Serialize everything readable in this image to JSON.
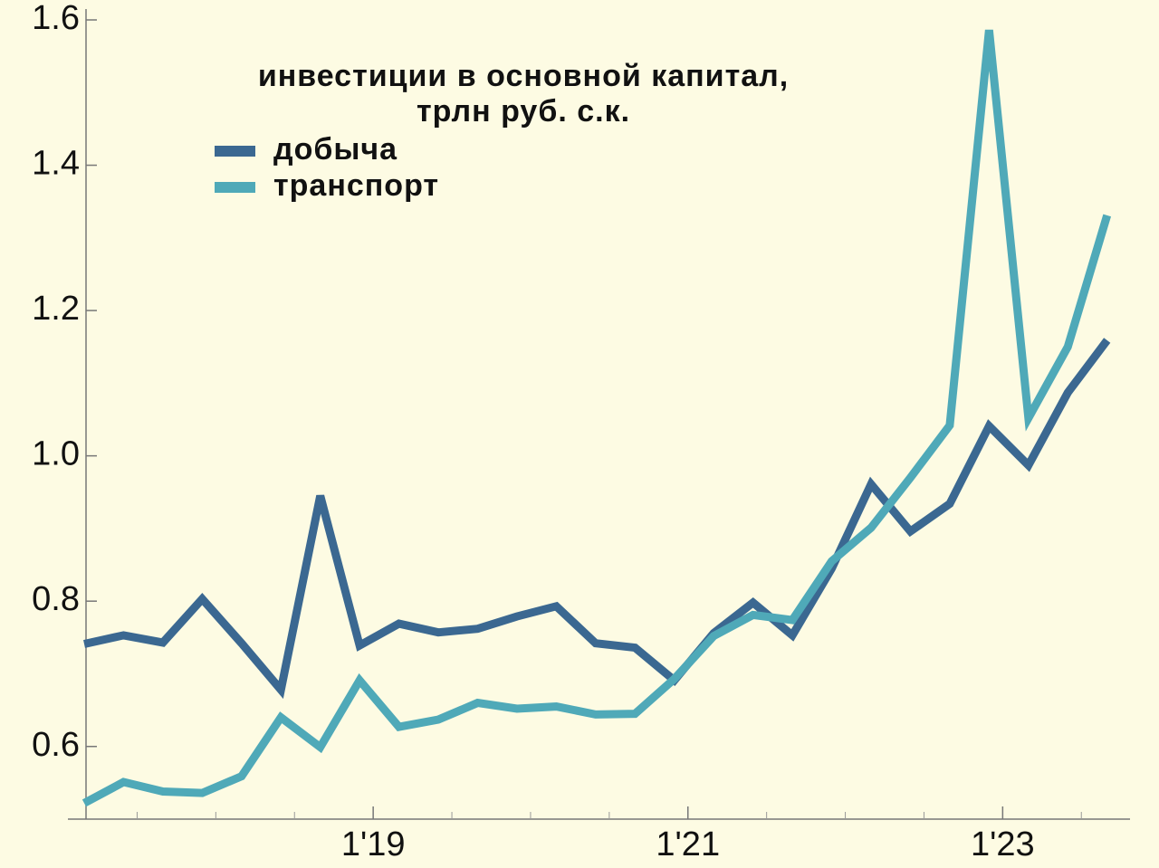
{
  "chart_data": {
    "type": "line",
    "title": [
      "инвестиции в основной капитал,",
      "трлн руб. с.к."
    ],
    "categories": [
      null,
      null,
      null,
      null,
      null,
      null,
      null,
      "1'19",
      null,
      null,
      null,
      null,
      null,
      null,
      null,
      "1'21",
      null,
      null,
      null,
      null,
      null,
      null,
      null,
      "1'23",
      null,
      null,
      null
    ],
    "series": [
      {
        "name": "добыча",
        "color": "#3b6891",
        "values": [
          0.741,
          0.753,
          0.743,
          0.803,
          0.742,
          0.678,
          0.945,
          0.739,
          0.769,
          0.757,
          0.762,
          0.779,
          0.793,
          0.742,
          0.736,
          0.691,
          0.756,
          0.798,
          0.753,
          0.845,
          0.961,
          0.896,
          0.934,
          1.041,
          0.987,
          1.087,
          1.159
        ]
      },
      {
        "name": "транспорт",
        "color": "#4fa9b8",
        "values": [
          0.522,
          0.551,
          0.538,
          0.536,
          0.559,
          0.64,
          0.599,
          0.691,
          0.627,
          0.637,
          0.66,
          0.652,
          0.655,
          0.644,
          0.645,
          0.693,
          0.752,
          0.781,
          0.774,
          0.855,
          0.901,
          0.97,
          1.042,
          1.586,
          1.052,
          1.15,
          1.331
        ]
      }
    ],
    "ylim": [
      0.5,
      1.6
    ],
    "yticks": [
      0.6,
      0.8,
      {
        "value": 1.0,
        "label": "1.0"
      },
      1.2,
      1.4,
      1.6
    ],
    "legend": "upper left"
  }
}
